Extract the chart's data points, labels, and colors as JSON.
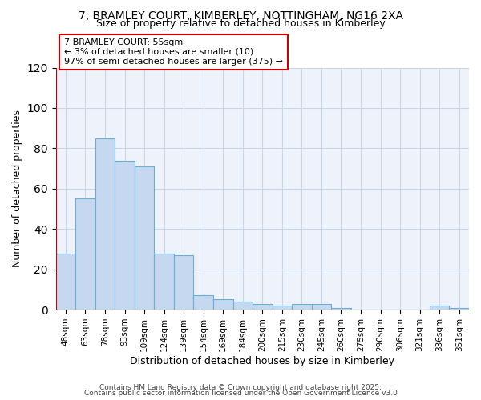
{
  "title_line1": "7, BRAMLEY COURT, KIMBERLEY, NOTTINGHAM, NG16 2XA",
  "title_line2": "Size of property relative to detached houses in Kimberley",
  "xlabel": "Distribution of detached houses by size in Kimberley",
  "ylabel": "Number of detached properties",
  "categories": [
    "48sqm",
    "63sqm",
    "78sqm",
    "93sqm",
    "109sqm",
    "124sqm",
    "139sqm",
    "154sqm",
    "169sqm",
    "184sqm",
    "200sqm",
    "215sqm",
    "230sqm",
    "245sqm",
    "260sqm",
    "275sqm",
    "290sqm",
    "306sqm",
    "321sqm",
    "336sqm",
    "351sqm"
  ],
  "values": [
    28,
    55,
    85,
    74,
    71,
    28,
    27,
    7,
    5,
    4,
    3,
    2,
    3,
    3,
    1,
    0,
    0,
    0,
    0,
    2,
    1
  ],
  "bar_color": "#c5d8f0",
  "bar_edge_color": "#6baed6",
  "ylim": [
    0,
    120
  ],
  "yticks": [
    0,
    20,
    40,
    60,
    80,
    100,
    120
  ],
  "property_label": "7 BRAMLEY COURT: 55sqm",
  "annotation_line1": "← 3% of detached houses are smaller (10)",
  "annotation_line2": "97% of semi-detached houses are larger (375) →",
  "annotation_box_color": "#ffffff",
  "annotation_border_color": "#cc0000",
  "redline_bar_index": 0,
  "grid_color": "#c8d8e8",
  "background_color": "#eef2fa",
  "footer_line1": "Contains HM Land Registry data © Crown copyright and database right 2025.",
  "footer_line2": "Contains public sector information licensed under the Open Government Licence v3.0"
}
